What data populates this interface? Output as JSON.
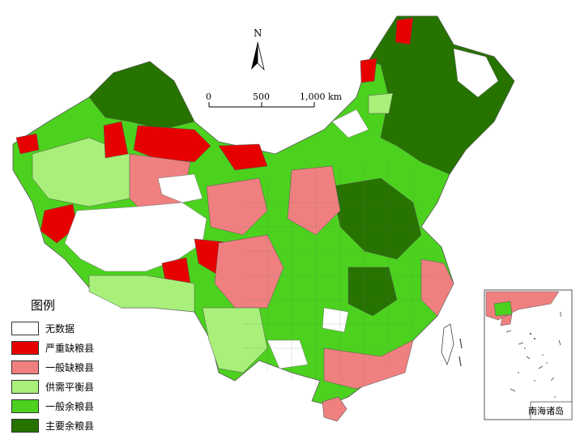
{
  "legend": {
    "title": "图例",
    "items": [
      {
        "label": "无数据",
        "color": "#ffffff"
      },
      {
        "label": "严重缺粮县",
        "color": "#e60000"
      },
      {
        "label": "一般缺粮县",
        "color": "#f08080"
      },
      {
        "label": "供需平衡县",
        "color": "#a8f07a"
      },
      {
        "label": "一般余粮县",
        "color": "#4cd21e"
      },
      {
        "label": "主要余粮县",
        "color": "#267300"
      }
    ]
  },
  "scale_bar": {
    "labels": [
      "0",
      "500",
      "1,000 km"
    ]
  },
  "north_arrow": {
    "label": "N"
  },
  "inset": {
    "label": "南海诸岛"
  }
}
